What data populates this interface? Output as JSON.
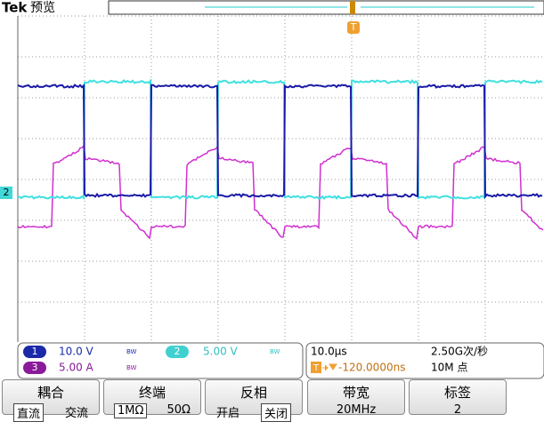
{
  "header": {
    "brand": "Tek",
    "mode": "预览"
  },
  "markers": {
    "trigger": "T",
    "channel": "2"
  },
  "channels": [
    {
      "number": "1",
      "scale": "10.0 V",
      "bw": "BW"
    },
    {
      "number": "2",
      "scale": "5.00 V",
      "bw": "BW"
    },
    {
      "number": "3",
      "scale": "5.00 A",
      "bw": "BW"
    }
  ],
  "timebase": {
    "scale": "10.0μs",
    "sample_rate": "2.50G次/秒",
    "trigger_icon": "T",
    "trigger_position": "-120.0000ns",
    "record_length": "10M 点"
  },
  "menu": [
    {
      "title": "耦合",
      "options": [
        "直流",
        "交流"
      ]
    },
    {
      "title": "终端",
      "options": [
        "1MΩ",
        "50Ω"
      ]
    },
    {
      "title": "反相",
      "options": [
        "开启",
        "关闭"
      ]
    },
    {
      "title": "带宽",
      "options": [
        "20MHz"
      ]
    },
    {
      "title": "标签",
      "options": [
        "2"
      ]
    }
  ]
}
